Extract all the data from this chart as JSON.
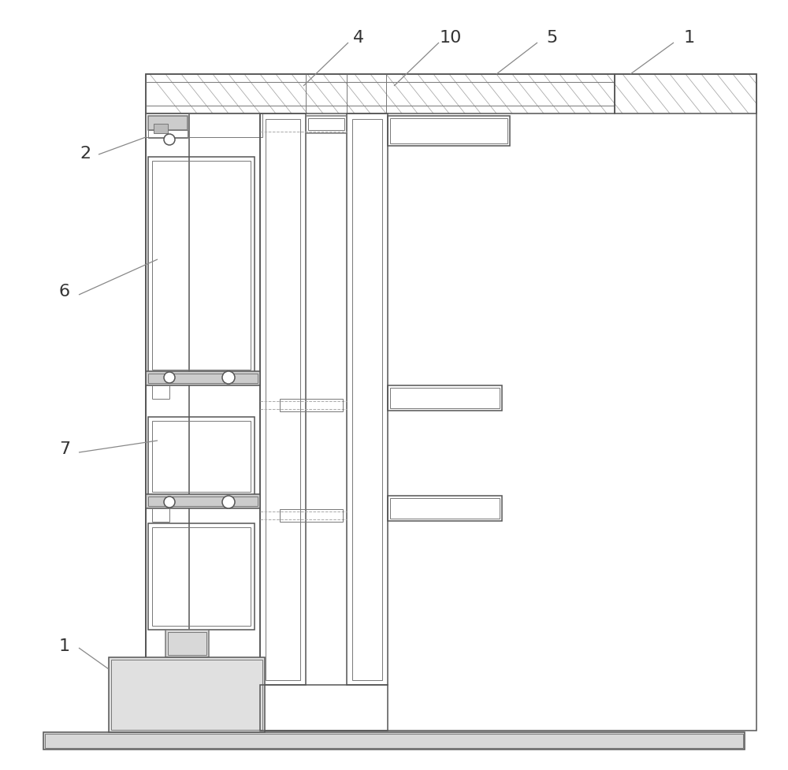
{
  "bg_color": "#ffffff",
  "lc": "#aaaaaa",
  "dc": "#777777",
  "blk": "#555555",
  "label_color": "#333333",
  "fig_width": 10.0,
  "fig_height": 9.78
}
